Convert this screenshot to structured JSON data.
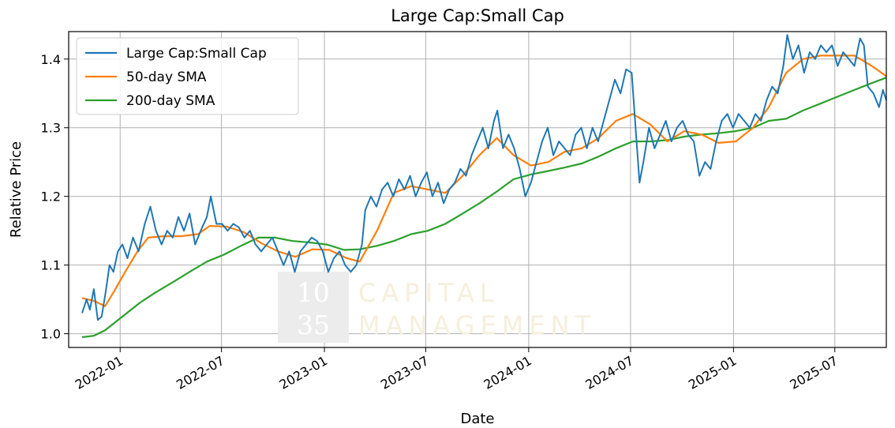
{
  "chart_data": {
    "type": "line",
    "title": "Large Cap:Small Cap",
    "xlabel": "Date",
    "ylabel": "Relative Price",
    "x_range": [
      "2021-10-01",
      "2025-10-01"
    ],
    "ylim": [
      0.98,
      1.44
    ],
    "x_ticks": [
      "2022-01",
      "2022-07",
      "2023-01",
      "2023-07",
      "2024-01",
      "2024-07",
      "2025-01",
      "2025-07"
    ],
    "y_ticks": [
      "1.0",
      "1.1",
      "1.2",
      "1.3",
      "1.4"
    ],
    "grid": true,
    "legend_position": "top-left",
    "watermark": {
      "line1": "10",
      "line2": "35",
      "text1": "CAPITAL",
      "text2": "MANAGEMENT"
    },
    "series": [
      {
        "name": "Large Cap:Small Cap",
        "color": "#1f77b4",
        "points": [
          [
            "2021-10-25",
            1.03
          ],
          [
            "2021-11-02",
            1.05
          ],
          [
            "2021-11-08",
            1.035
          ],
          [
            "2021-11-15",
            1.065
          ],
          [
            "2021-11-22",
            1.02
          ],
          [
            "2021-11-29",
            1.025
          ],
          [
            "2021-12-06",
            1.06
          ],
          [
            "2021-12-13",
            1.1
          ],
          [
            "2021-12-20",
            1.09
          ],
          [
            "2021-12-28",
            1.12
          ],
          [
            "2022-01-05",
            1.13
          ],
          [
            "2022-01-14",
            1.11
          ],
          [
            "2022-01-24",
            1.14
          ],
          [
            "2022-02-03",
            1.12
          ],
          [
            "2022-02-14",
            1.16
          ],
          [
            "2022-02-24",
            1.185
          ],
          [
            "2022-03-06",
            1.15
          ],
          [
            "2022-03-16",
            1.13
          ],
          [
            "2022-03-26",
            1.15
          ],
          [
            "2022-04-05",
            1.14
          ],
          [
            "2022-04-15",
            1.17
          ],
          [
            "2022-04-25",
            1.15
          ],
          [
            "2022-05-05",
            1.175
          ],
          [
            "2022-05-15",
            1.13
          ],
          [
            "2022-05-25",
            1.15
          ],
          [
            "2022-06-05",
            1.17
          ],
          [
            "2022-06-12",
            1.2
          ],
          [
            "2022-06-22",
            1.16
          ],
          [
            "2022-07-02",
            1.16
          ],
          [
            "2022-07-12",
            1.15
          ],
          [
            "2022-07-22",
            1.16
          ],
          [
            "2022-08-01",
            1.155
          ],
          [
            "2022-08-11",
            1.14
          ],
          [
            "2022-08-21",
            1.15
          ],
          [
            "2022-08-31",
            1.13
          ],
          [
            "2022-09-10",
            1.12
          ],
          [
            "2022-09-20",
            1.13
          ],
          [
            "2022-09-30",
            1.14
          ],
          [
            "2022-10-10",
            1.12
          ],
          [
            "2022-10-20",
            1.1
          ],
          [
            "2022-10-30",
            1.12
          ],
          [
            "2022-11-09",
            1.09
          ],
          [
            "2022-11-19",
            1.12
          ],
          [
            "2022-11-29",
            1.13
          ],
          [
            "2022-12-09",
            1.14
          ],
          [
            "2022-12-19",
            1.135
          ],
          [
            "2022-12-29",
            1.12
          ],
          [
            "2023-01-08",
            1.09
          ],
          [
            "2023-01-18",
            1.11
          ],
          [
            "2023-01-28",
            1.12
          ],
          [
            "2023-02-07",
            1.1
          ],
          [
            "2023-02-17",
            1.09
          ],
          [
            "2023-02-27",
            1.1
          ],
          [
            "2023-03-09",
            1.13
          ],
          [
            "2023-03-15",
            1.18
          ],
          [
            "2023-03-25",
            1.2
          ],
          [
            "2023-04-04",
            1.185
          ],
          [
            "2023-04-14",
            1.21
          ],
          [
            "2023-04-24",
            1.22
          ],
          [
            "2023-05-04",
            1.2
          ],
          [
            "2023-05-14",
            1.225
          ],
          [
            "2023-05-24",
            1.21
          ],
          [
            "2023-06-03",
            1.23
          ],
          [
            "2023-06-13",
            1.2
          ],
          [
            "2023-06-23",
            1.22
          ],
          [
            "2023-07-03",
            1.235
          ],
          [
            "2023-07-13",
            1.2
          ],
          [
            "2023-07-23",
            1.22
          ],
          [
            "2023-08-02",
            1.19
          ],
          [
            "2023-08-12",
            1.21
          ],
          [
            "2023-08-22",
            1.22
          ],
          [
            "2023-09-01",
            1.24
          ],
          [
            "2023-09-11",
            1.23
          ],
          [
            "2023-09-21",
            1.26
          ],
          [
            "2023-10-01",
            1.28
          ],
          [
            "2023-10-11",
            1.3
          ],
          [
            "2023-10-21",
            1.27
          ],
          [
            "2023-10-31",
            1.31
          ],
          [
            "2023-11-06",
            1.325
          ],
          [
            "2023-11-16",
            1.27
          ],
          [
            "2023-11-26",
            1.29
          ],
          [
            "2023-12-06",
            1.27
          ],
          [
            "2023-12-16",
            1.24
          ],
          [
            "2023-12-26",
            1.2
          ],
          [
            "2024-01-05",
            1.22
          ],
          [
            "2024-01-15",
            1.25
          ],
          [
            "2024-01-25",
            1.28
          ],
          [
            "2024-02-04",
            1.3
          ],
          [
            "2024-02-14",
            1.26
          ],
          [
            "2024-02-24",
            1.28
          ],
          [
            "2024-03-05",
            1.27
          ],
          [
            "2024-03-15",
            1.26
          ],
          [
            "2024-03-25",
            1.29
          ],
          [
            "2024-04-04",
            1.3
          ],
          [
            "2024-04-14",
            1.27
          ],
          [
            "2024-04-24",
            1.3
          ],
          [
            "2024-05-04",
            1.28
          ],
          [
            "2024-05-14",
            1.31
          ],
          [
            "2024-05-24",
            1.34
          ],
          [
            "2024-06-03",
            1.37
          ],
          [
            "2024-06-13",
            1.35
          ],
          [
            "2024-06-23",
            1.385
          ],
          [
            "2024-07-03",
            1.38
          ],
          [
            "2024-07-10",
            1.3
          ],
          [
            "2024-07-17",
            1.22
          ],
          [
            "2024-07-24",
            1.25
          ],
          [
            "2024-08-03",
            1.3
          ],
          [
            "2024-08-13",
            1.27
          ],
          [
            "2024-08-23",
            1.29
          ],
          [
            "2024-09-02",
            1.31
          ],
          [
            "2024-09-12",
            1.28
          ],
          [
            "2024-09-22",
            1.3
          ],
          [
            "2024-10-02",
            1.31
          ],
          [
            "2024-10-12",
            1.29
          ],
          [
            "2024-10-22",
            1.28
          ],
          [
            "2024-11-01",
            1.23
          ],
          [
            "2024-11-11",
            1.25
          ],
          [
            "2024-11-21",
            1.24
          ],
          [
            "2024-12-01",
            1.28
          ],
          [
            "2024-12-11",
            1.31
          ],
          [
            "2024-12-21",
            1.32
          ],
          [
            "2024-12-31",
            1.3
          ],
          [
            "2025-01-10",
            1.32
          ],
          [
            "2025-01-20",
            1.31
          ],
          [
            "2025-01-30",
            1.3
          ],
          [
            "2025-02-09",
            1.32
          ],
          [
            "2025-02-19",
            1.31
          ],
          [
            "2025-03-01",
            1.34
          ],
          [
            "2025-03-11",
            1.36
          ],
          [
            "2025-03-21",
            1.35
          ],
          [
            "2025-03-31",
            1.39
          ],
          [
            "2025-04-07",
            1.435
          ],
          [
            "2025-04-17",
            1.4
          ],
          [
            "2025-04-27",
            1.42
          ],
          [
            "2025-05-07",
            1.38
          ],
          [
            "2025-05-17",
            1.41
          ],
          [
            "2025-05-27",
            1.4
          ],
          [
            "2025-06-06",
            1.42
          ],
          [
            "2025-06-16",
            1.41
          ],
          [
            "2025-06-26",
            1.42
          ],
          [
            "2025-07-06",
            1.39
          ],
          [
            "2025-07-16",
            1.41
          ],
          [
            "2025-07-26",
            1.4
          ],
          [
            "2025-08-05",
            1.39
          ],
          [
            "2025-08-15",
            1.43
          ],
          [
            "2025-08-22",
            1.42
          ],
          [
            "2025-08-29",
            1.36
          ],
          [
            "2025-09-08",
            1.35
          ],
          [
            "2025-09-18",
            1.33
          ],
          [
            "2025-09-25",
            1.355
          ],
          [
            "2025-10-01",
            1.34
          ]
        ]
      },
      {
        "name": "50-day SMA",
        "color": "#ff7f0e",
        "points": [
          [
            "2021-10-25",
            1.052
          ],
          [
            "2021-11-15",
            1.048
          ],
          [
            "2021-12-05",
            1.04
          ],
          [
            "2021-12-20",
            1.06
          ],
          [
            "2022-01-10",
            1.09
          ],
          [
            "2022-02-01",
            1.12
          ],
          [
            "2022-02-20",
            1.14
          ],
          [
            "2022-03-20",
            1.142
          ],
          [
            "2022-04-20",
            1.142
          ],
          [
            "2022-05-20",
            1.145
          ],
          [
            "2022-06-10",
            1.157
          ],
          [
            "2022-07-10",
            1.156
          ],
          [
            "2022-08-10",
            1.148
          ],
          [
            "2022-09-10",
            1.132
          ],
          [
            "2022-10-10",
            1.12
          ],
          [
            "2022-11-10",
            1.112
          ],
          [
            "2022-12-10",
            1.123
          ],
          [
            "2023-01-10",
            1.122
          ],
          [
            "2023-02-10",
            1.11
          ],
          [
            "2023-03-05",
            1.105
          ],
          [
            "2023-04-05",
            1.15
          ],
          [
            "2023-05-05",
            1.205
          ],
          [
            "2023-06-05",
            1.215
          ],
          [
            "2023-07-05",
            1.21
          ],
          [
            "2023-08-05",
            1.205
          ],
          [
            "2023-09-05",
            1.23
          ],
          [
            "2023-10-05",
            1.26
          ],
          [
            "2023-11-05",
            1.285
          ],
          [
            "2023-12-05",
            1.26
          ],
          [
            "2024-01-05",
            1.245
          ],
          [
            "2024-02-05",
            1.25
          ],
          [
            "2024-03-05",
            1.265
          ],
          [
            "2024-04-05",
            1.27
          ],
          [
            "2024-05-05",
            1.285
          ],
          [
            "2024-06-05",
            1.31
          ],
          [
            "2024-07-05",
            1.32
          ],
          [
            "2024-08-05",
            1.305
          ],
          [
            "2024-09-05",
            1.28
          ],
          [
            "2024-10-05",
            1.295
          ],
          [
            "2024-11-05",
            1.29
          ],
          [
            "2024-12-05",
            1.278
          ],
          [
            "2025-01-05",
            1.28
          ],
          [
            "2025-02-05",
            1.3
          ],
          [
            "2025-03-05",
            1.33
          ],
          [
            "2025-04-05",
            1.38
          ],
          [
            "2025-05-05",
            1.4
          ],
          [
            "2025-06-05",
            1.405
          ],
          [
            "2025-07-05",
            1.405
          ],
          [
            "2025-08-05",
            1.405
          ],
          [
            "2025-09-05",
            1.39
          ],
          [
            "2025-10-01",
            1.375
          ]
        ]
      },
      {
        "name": "200-day SMA",
        "color": "#2ca02c",
        "points": [
          [
            "2021-10-25",
            0.995
          ],
          [
            "2021-11-15",
            0.997
          ],
          [
            "2021-12-05",
            1.005
          ],
          [
            "2022-01-05",
            1.025
          ],
          [
            "2022-02-05",
            1.045
          ],
          [
            "2022-03-05",
            1.06
          ],
          [
            "2022-04-05",
            1.075
          ],
          [
            "2022-05-05",
            1.09
          ],
          [
            "2022-06-05",
            1.105
          ],
          [
            "2022-07-05",
            1.115
          ],
          [
            "2022-08-05",
            1.128
          ],
          [
            "2022-09-05",
            1.14
          ],
          [
            "2022-10-05",
            1.14
          ],
          [
            "2022-11-05",
            1.135
          ],
          [
            "2022-12-05",
            1.133
          ],
          [
            "2023-01-05",
            1.13
          ],
          [
            "2023-02-05",
            1.122
          ],
          [
            "2023-03-05",
            1.123
          ],
          [
            "2023-04-05",
            1.128
          ],
          [
            "2023-05-05",
            1.135
          ],
          [
            "2023-06-05",
            1.145
          ],
          [
            "2023-07-05",
            1.15
          ],
          [
            "2023-08-05",
            1.16
          ],
          [
            "2023-09-05",
            1.175
          ],
          [
            "2023-10-05",
            1.19
          ],
          [
            "2023-11-05",
            1.207
          ],
          [
            "2023-12-05",
            1.225
          ],
          [
            "2024-01-05",
            1.232
          ],
          [
            "2024-02-05",
            1.237
          ],
          [
            "2024-03-05",
            1.242
          ],
          [
            "2024-04-05",
            1.248
          ],
          [
            "2024-05-05",
            1.258
          ],
          [
            "2024-06-05",
            1.27
          ],
          [
            "2024-07-05",
            1.28
          ],
          [
            "2024-08-05",
            1.28
          ],
          [
            "2024-09-05",
            1.282
          ],
          [
            "2024-10-05",
            1.287
          ],
          [
            "2024-11-05",
            1.29
          ],
          [
            "2024-12-05",
            1.292
          ],
          [
            "2025-01-05",
            1.295
          ],
          [
            "2025-02-05",
            1.3
          ],
          [
            "2025-03-05",
            1.31
          ],
          [
            "2025-04-05",
            1.313
          ],
          [
            "2025-05-05",
            1.325
          ],
          [
            "2025-06-05",
            1.335
          ],
          [
            "2025-07-05",
            1.345
          ],
          [
            "2025-08-05",
            1.355
          ],
          [
            "2025-09-05",
            1.365
          ],
          [
            "2025-10-01",
            1.373
          ]
        ]
      }
    ]
  }
}
